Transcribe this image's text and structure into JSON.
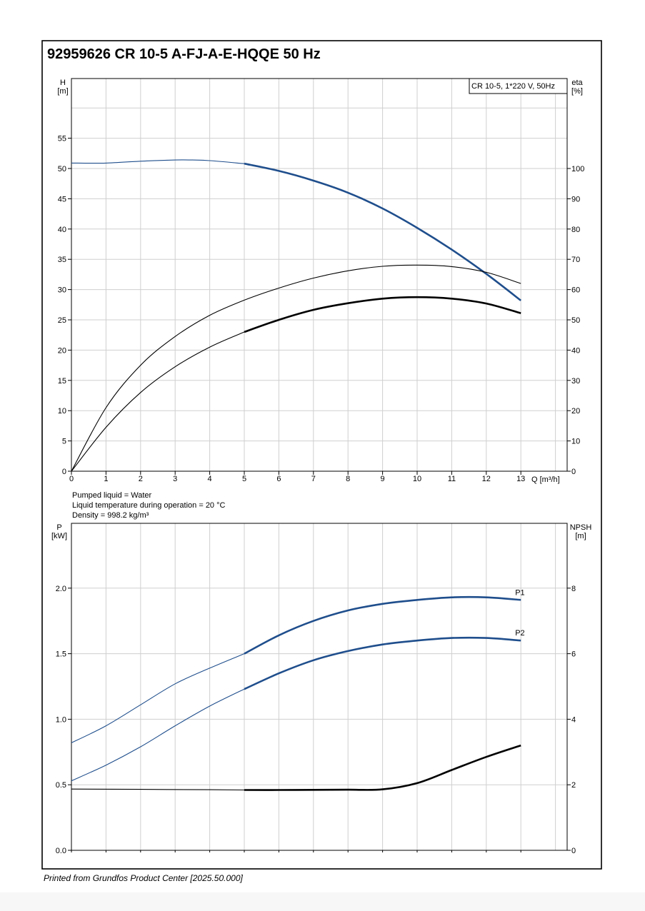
{
  "title": "92959626 CR 10-5 A-FJ-A-E-HQQE 50 Hz",
  "footer": "Printed from Grundfos Product Center [2025.50.000]",
  "colors": {
    "blue": "#1f4e8c",
    "black": "#000000",
    "grid": "#cfcfcf"
  },
  "chart_data": [
    {
      "type": "line",
      "legend_box": "CR 10-5, 1*220 V, 50Hz",
      "xlabel": "Q [m³/h]",
      "ylabel": "H\n[m]",
      "y2label": "eta\n[%]",
      "xlim": [
        0,
        14
      ],
      "ylim": [
        0,
        65
      ],
      "y2lim": [
        0,
        130
      ],
      "x_ticks": [
        0,
        1,
        2,
        3,
        4,
        5,
        6,
        7,
        8,
        9,
        10,
        11,
        12,
        13
      ],
      "y_ticks": [
        0,
        5,
        10,
        15,
        20,
        25,
        30,
        35,
        40,
        45,
        50,
        55
      ],
      "y2_ticks": [
        0,
        10,
        20,
        30,
        40,
        50,
        60,
        70,
        80,
        90,
        100
      ],
      "grid": true,
      "series": [
        {
          "role": "H",
          "axis": "y",
          "color": "#1f4e8c",
          "bold_from": 5,
          "x": [
            0,
            1,
            2,
            3,
            3.5,
            4,
            5,
            6,
            7,
            8,
            9,
            10,
            11,
            12,
            13
          ],
          "y": [
            50.9,
            50.9,
            51.2,
            51.4,
            51.4,
            51.3,
            50.8,
            49.6,
            48.0,
            46.0,
            43.4,
            40.2,
            36.6,
            32.6,
            28.2
          ]
        },
        {
          "role": "eta_upper",
          "axis": "y2",
          "color": "#000000",
          "bold_from": null,
          "x": [
            0,
            1,
            2,
            3,
            4,
            5,
            6,
            7,
            8,
            9,
            10,
            11,
            12,
            13
          ],
          "y": [
            0,
            21,
            35,
            44.5,
            51.5,
            56.5,
            60.5,
            63.8,
            66.2,
            67.7,
            68.1,
            67.6,
            65.7,
            62.0
          ]
        },
        {
          "role": "eta_lower",
          "axis": "y2",
          "color": "#000000",
          "bold_from": 5,
          "x": [
            0,
            1,
            2,
            3,
            4,
            5,
            6,
            7,
            8,
            9,
            10,
            11,
            12,
            13
          ],
          "y": [
            0,
            14.5,
            26,
            34.5,
            41,
            46,
            50,
            53.3,
            55.5,
            57,
            57.5,
            57,
            55.4,
            52.2
          ]
        }
      ]
    },
    {
      "type": "line",
      "ylabel": "P\n[kW]",
      "y2label": "NPSH\n[m]",
      "xlim": [
        0,
        14
      ],
      "ylim": [
        0,
        2.5
      ],
      "y2lim": [
        0,
        10
      ],
      "x_ticks": [
        0,
        1,
        2,
        3,
        4,
        5,
        6,
        7,
        8,
        9,
        10,
        11,
        12,
        13
      ],
      "y_ticks": [
        0.0,
        0.5,
        1.0,
        1.5,
        2.0
      ],
      "y_tick_labels": [
        "0.0",
        "0.5",
        "1.0",
        "1.5",
        "2.0"
      ],
      "y2_ticks": [
        0,
        2,
        4,
        6,
        8
      ],
      "grid": true,
      "series": [
        {
          "name": "P1",
          "axis": "y",
          "color": "#1f4e8c",
          "bold_from": 5,
          "x": [
            0,
            1,
            2,
            3,
            4,
            5,
            6,
            7,
            8,
            9,
            10,
            11,
            12,
            13
          ],
          "y": [
            0.82,
            0.95,
            1.11,
            1.27,
            1.39,
            1.5,
            1.64,
            1.75,
            1.83,
            1.88,
            1.91,
            1.93,
            1.93,
            1.91
          ]
        },
        {
          "name": "P2",
          "axis": "y",
          "color": "#1f4e8c",
          "bold_from": 5,
          "x": [
            0,
            1,
            2,
            3,
            4,
            5,
            6,
            7,
            8,
            9,
            10,
            11,
            12,
            13
          ],
          "y": [
            0.53,
            0.65,
            0.79,
            0.95,
            1.1,
            1.23,
            1.35,
            1.45,
            1.52,
            1.57,
            1.6,
            1.62,
            1.62,
            1.6
          ]
        },
        {
          "role": "NPSH",
          "axis": "y2",
          "color": "#000000",
          "bold_from": 5,
          "x": [
            0,
            2,
            4,
            5,
            6,
            7,
            8,
            9,
            10,
            11,
            12,
            13
          ],
          "y": [
            1.87,
            1.86,
            1.85,
            1.84,
            1.84,
            1.845,
            1.85,
            1.86,
            2.05,
            2.45,
            2.85,
            3.2
          ]
        }
      ]
    }
  ],
  "notes": {
    "pumped_liquid": "Pumped liquid = Water",
    "liquid_temperature": "Liquid temperature during operation = 20 °C",
    "density": "Density = 998.2 kg/m³"
  }
}
